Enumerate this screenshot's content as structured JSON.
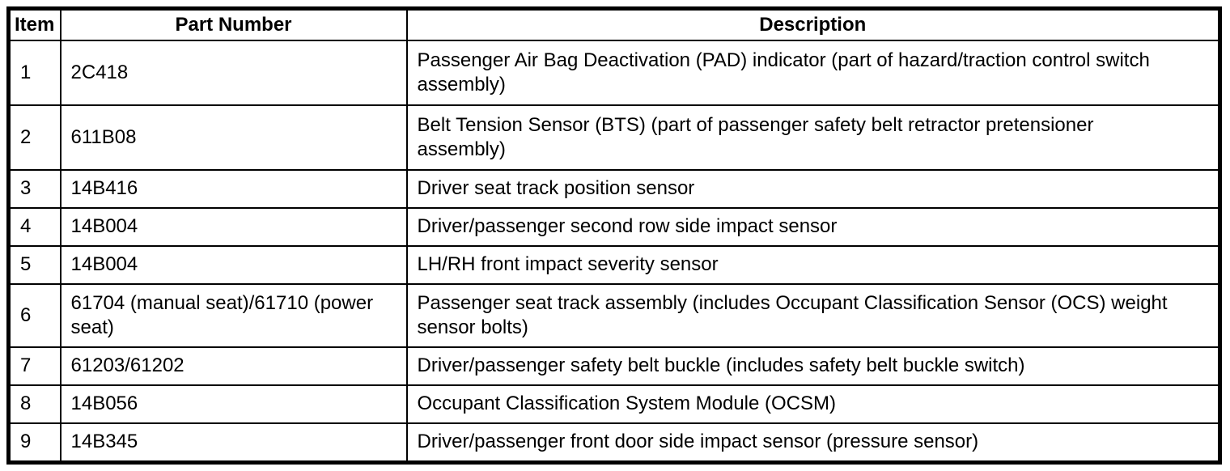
{
  "table": {
    "headers": [
      "Item",
      "Part Number",
      "Description"
    ],
    "rows": [
      {
        "item": "1",
        "part": "2C418",
        "description": "Passenger Air Bag Deactivation (PAD) indicator (part of hazard/traction control switch assembly)"
      },
      {
        "item": "2",
        "part": "611B08",
        "description": "Belt Tension Sensor (BTS) (part of passenger safety belt retractor pretensioner assembly)"
      },
      {
        "item": "3",
        "part": "14B416",
        "description": "Driver seat track position sensor"
      },
      {
        "item": "4",
        "part": "14B004",
        "description": "Driver/passenger second row side impact sensor"
      },
      {
        "item": "5",
        "part": "14B004",
        "description": "LH/RH front impact severity sensor"
      },
      {
        "item": "6",
        "part": "61704 (manual seat)/61710 (power seat)",
        "description": "Passenger seat track assembly (includes Occupant Classification Sensor (OCS) weight sensor bolts)"
      },
      {
        "item": "7",
        "part": "61203/61202",
        "description": "Driver/passenger safety belt buckle (includes safety belt buckle switch)"
      },
      {
        "item": "8",
        "part": "14B056",
        "description": "Occupant Classification System Module (OCSM)"
      },
      {
        "item": "9",
        "part": "14B345",
        "description": "Driver/passenger front door side impact sensor (pressure sensor)"
      }
    ],
    "colors": {
      "border": "#000000",
      "background": "#ffffff",
      "text": "#000000"
    }
  }
}
